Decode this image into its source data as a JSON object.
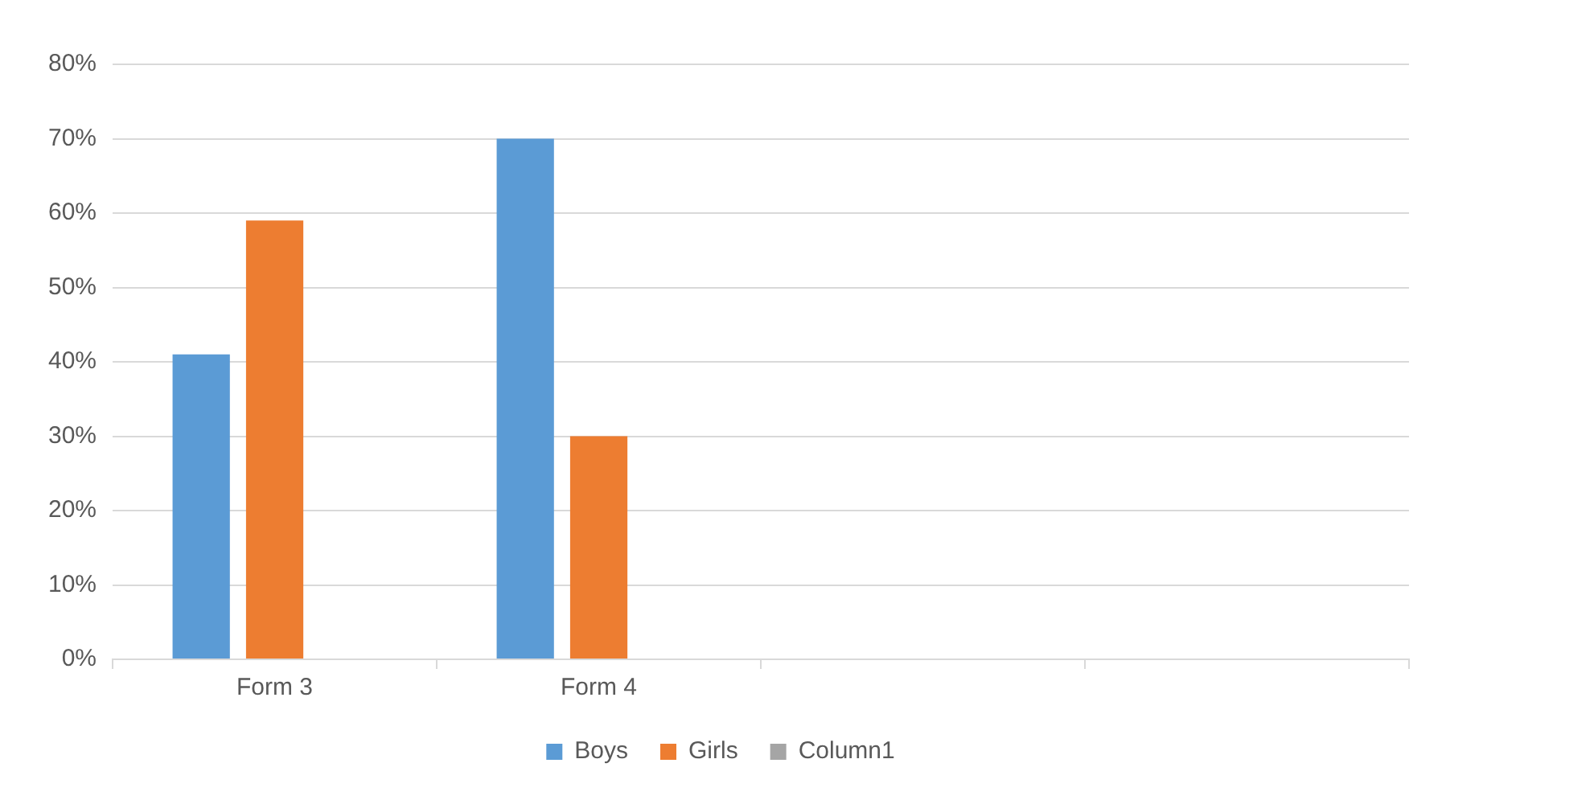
{
  "chart_data": {
    "type": "bar",
    "categories": [
      "Form 3",
      "Form 4",
      null,
      null
    ],
    "series": [
      {
        "name": "Boys",
        "color": "#5b9bd5",
        "values": [
          41,
          70,
          null,
          null
        ]
      },
      {
        "name": "Girls",
        "color": "#ed7d31",
        "values": [
          59,
          30,
          null,
          null
        ]
      },
      {
        "name": "Column1",
        "color": "#a5a5a5",
        "values": [
          null,
          null,
          null,
          null
        ]
      }
    ],
    "ylim": [
      0,
      80
    ],
    "yticks": [
      {
        "value": 0,
        "label": "0%"
      },
      {
        "value": 10,
        "label": "10%"
      },
      {
        "value": 20,
        "label": "20%"
      },
      {
        "value": 30,
        "label": "30%"
      },
      {
        "value": 40,
        "label": "40%"
      },
      {
        "value": 50,
        "label": "50%"
      },
      {
        "value": 60,
        "label": "60%"
      },
      {
        "value": 70,
        "label": "70%"
      },
      {
        "value": 80,
        "label": "80%"
      }
    ],
    "grid": "y",
    "legend": "bottom"
  }
}
